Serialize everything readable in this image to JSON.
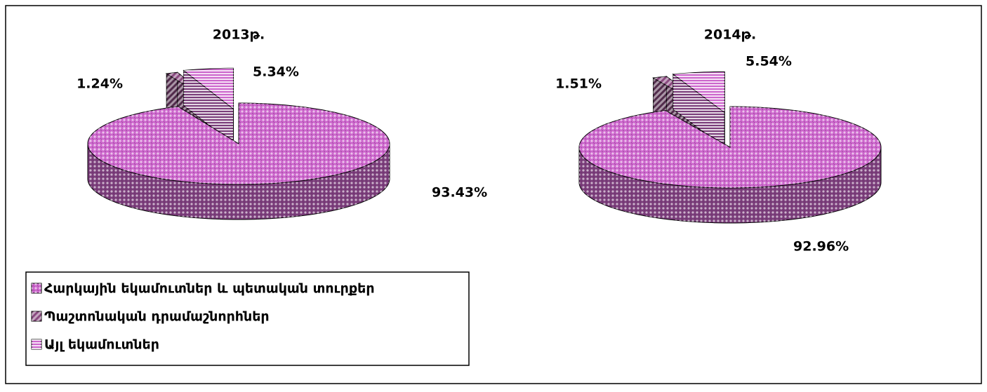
{
  "chart_data": [
    {
      "type": "pie",
      "title": "2013թ.",
      "values": [
        93.43,
        1.24,
        5.34
      ],
      "value_labels": [
        "93.43%",
        "1.24%",
        "5.34%"
      ]
    },
    {
      "type": "pie",
      "title": "2014թ.",
      "values": [
        92.96,
        1.51,
        5.54
      ],
      "value_labels": [
        "92.96%",
        "1.51%",
        "5.54%"
      ]
    }
  ],
  "legend": {
    "names": [
      "Հարկային եկամուտներ և պետական տուրքեր",
      "Պաշտոնական դրամաշնորհներ",
      "Այլ եկամուտներ"
    ],
    "colors": [
      "#cc66cc",
      "#8a4a80",
      "#cc66cc"
    ]
  }
}
